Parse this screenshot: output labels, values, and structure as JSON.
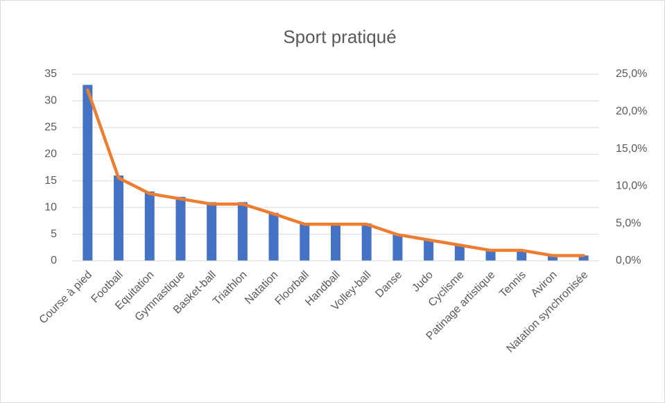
{
  "chart_data": {
    "type": "bar",
    "title": "Sport pratiqué",
    "categories": [
      "Course à pied",
      "Football",
      "Equitation",
      "Gymnastique",
      "Basket-ball",
      "Triathlon",
      "Natation",
      "Floorball",
      "Handball",
      "Volley-ball",
      "Danse",
      "Judo",
      "Cyclisme",
      "Patinage artistique",
      "Tennis",
      "Aviron",
      "Natation synchronisée"
    ],
    "series": [
      {
        "color": "#4472c4",
        "values": [
          33,
          16,
          13,
          12,
          11,
          11,
          9,
          7,
          7,
          7,
          5,
          4,
          3,
          2,
          2,
          1,
          1
        ]
      },
      {
        "type": "line",
        "axis": "y2",
        "color": "#ed7d31",
        "values": [
          22.9,
          11.1,
          9.0,
          8.3,
          7.6,
          7.6,
          6.3,
          4.9,
          4.9,
          4.9,
          3.5,
          2.8,
          2.1,
          1.4,
          1.4,
          0.7,
          0.7
        ]
      }
    ],
    "ylim": [
      0,
      35
    ],
    "yticks": [
      0,
      5,
      10,
      15,
      20,
      25,
      30,
      35
    ],
    "y2lim": [
      0,
      25
    ],
    "y2ticks": [
      {
        "value": 0,
        "label": "0,0%"
      },
      {
        "value": 5,
        "label": "5,0%"
      },
      {
        "value": 10,
        "label": "10,0%"
      },
      {
        "value": 15,
        "label": "15,0%"
      },
      {
        "value": 20,
        "label": "20,0%"
      },
      {
        "value": 25,
        "label": "25,0%"
      }
    ],
    "grid": true
  }
}
